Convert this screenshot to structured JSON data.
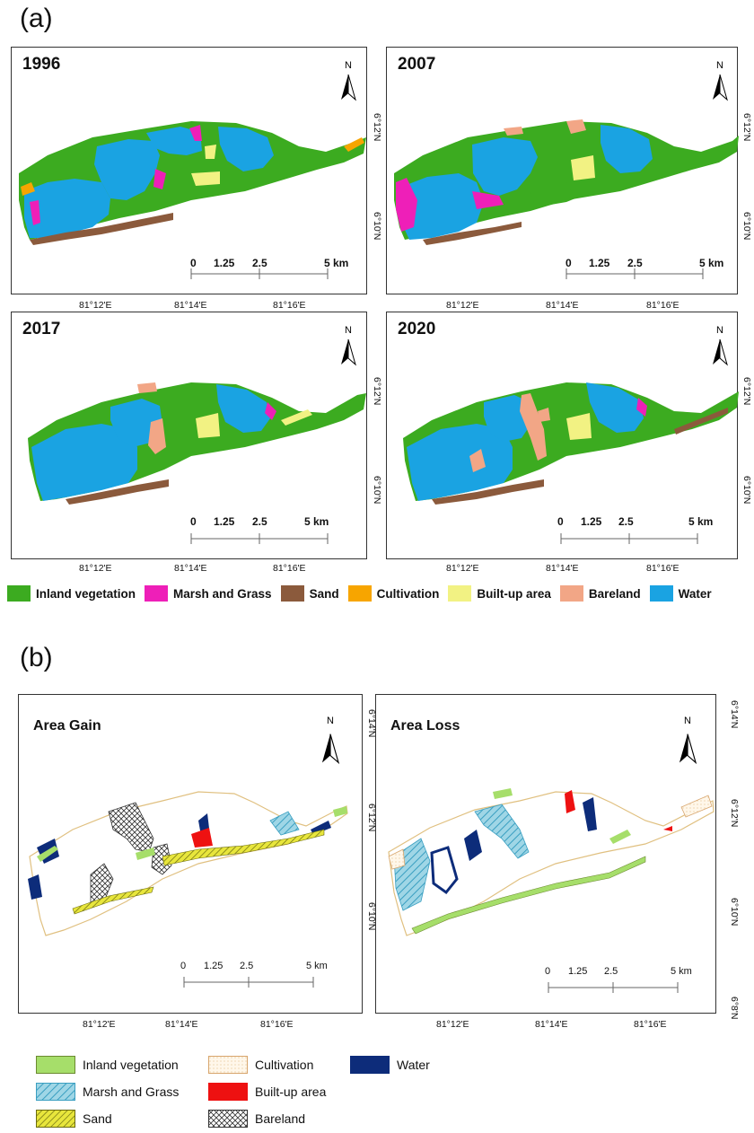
{
  "panel_a": {
    "label": "(a)",
    "maps": [
      {
        "year": "1996",
        "lat_labels": [
          "6°12'N",
          "6°10'N"
        ]
      },
      {
        "year": "2007",
        "lat_labels": [
          "6°12'N",
          "6°10'N"
        ]
      },
      {
        "year": "2017",
        "lat_labels": [
          "6°12'N",
          "6°10'N"
        ]
      },
      {
        "year": "2020",
        "lat_labels": [
          "6°12'N",
          "6°10'N"
        ]
      }
    ],
    "lon_labels": [
      "81°12'E",
      "81°14'E",
      "81°16'E"
    ],
    "north_label": "N",
    "scale_bar": {
      "ticks": [
        "0",
        "1.25",
        "2.5",
        "5 km"
      ]
    },
    "legend": [
      {
        "label": "Inland vegetation",
        "color": "#3cab20"
      },
      {
        "label": "Marsh and Grass",
        "color": "#ee1fb8"
      },
      {
        "label": "Sand",
        "color": "#8b5a3c"
      },
      {
        "label": "Cultivation",
        "color": "#f7a500"
      },
      {
        "label": "Built-up area",
        "color": "#f2f283"
      },
      {
        "label": "Bareland",
        "color": "#f2a686"
      },
      {
        "label": "Water",
        "color": "#1aa3e2"
      }
    ]
  },
  "panel_b": {
    "label": "(b)",
    "maps": [
      {
        "title": "Area Gain",
        "lat_labels": [
          "6°14'N",
          "6°12'N",
          "6°10'N"
        ]
      },
      {
        "title": "Area Loss",
        "lat_labels": [
          "6°14'N",
          "6°12'N",
          "6°10'N",
          "6°8'N"
        ]
      }
    ],
    "lon_labels": [
      "81°12'E",
      "81°14'E",
      "81°16'E"
    ],
    "north_label": "N",
    "scale_bar": {
      "ticks": [
        "0",
        "1.25",
        "2.5",
        "5 km"
      ]
    },
    "legend": [
      {
        "label": "Inland vegetation",
        "pattern": "vegetation"
      },
      {
        "label": "Cultivation",
        "pattern": "cultivation"
      },
      {
        "label": "Water",
        "pattern": "water"
      },
      {
        "label": "Marsh and Grass",
        "pattern": "marsh"
      },
      {
        "label": "Built-up area",
        "pattern": "builtup"
      },
      {
        "label": "Sand",
        "pattern": "sand"
      },
      {
        "label": "Bareland",
        "pattern": "bareland"
      }
    ]
  }
}
